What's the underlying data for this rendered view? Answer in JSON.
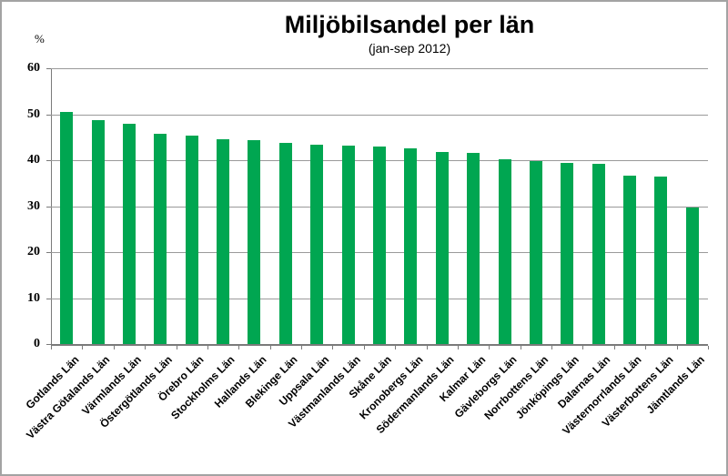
{
  "window": {
    "background_color": "#ffffff",
    "border_color": "#a3a3a3"
  },
  "chart_data": {
    "type": "bar",
    "title": "Miljöbilsandel per län",
    "subtitle": "(jan-sep 2012)",
    "ylabel": "%",
    "xlabel": "",
    "ylim": [
      0,
      60
    ],
    "yticks": [
      0,
      10,
      20,
      30,
      40,
      50,
      60
    ],
    "grid": "horizontal",
    "legend": "none",
    "bar_color": "#00a651",
    "gridline_color": "#9a9a9a",
    "axis_color": "#7a7a7a",
    "categories": [
      "Gotlands Län",
      "Västra Götalands Län",
      "Värmlands Län",
      "Östergötlands Län",
      "Örebro Län",
      "Stockholms Län",
      "Hallands Län",
      "Blekinge Län",
      "Uppsala Län",
      "Västmanlands Län",
      "Skåne Län",
      "Kronobergs Län",
      "Södermanlands Län",
      "Kalmar Län",
      "Gävleborgs Län",
      "Norrbottens Län",
      "Jönköpings Län",
      "Dalarnas Län",
      "Västernorrlands Län",
      "Västerbottens Län",
      "Jämtlands Län"
    ],
    "values": [
      50.4,
      48.7,
      47.9,
      45.7,
      45.4,
      44.6,
      44.4,
      43.7,
      43.4,
      43.1,
      42.9,
      42.6,
      41.8,
      41.5,
      40.2,
      39.9,
      39.5,
      39.2,
      36.7,
      36.5,
      29.8
    ]
  }
}
